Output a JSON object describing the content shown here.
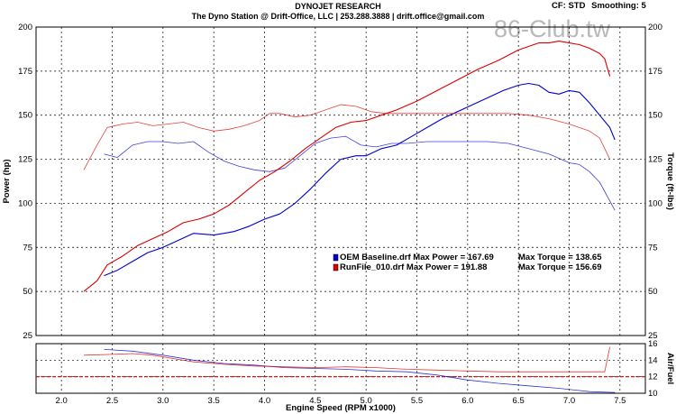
{
  "header": {
    "title": "DYNOJET RESEARCH",
    "subtitle": "The Dyno Station @ Drift-Office, LLC | 253.288.3888 | drift.office@gmail.com",
    "cf": "CF: STD",
    "smoothing": "Smoothing: 5",
    "watermark": "86-Club.tw"
  },
  "chart_data": [
    {
      "type": "line",
      "xlabel": "Engine Speed (RPM x1000)",
      "ylabel": "Power (hp)",
      "y2label": "Torque (ft-lbs)",
      "xlim": [
        1.75,
        7.75
      ],
      "ylim": [
        25,
        200
      ],
      "y2lim": [
        25,
        200
      ],
      "grid": true,
      "x_ticks": [
        "2.0",
        "2.5",
        "3.0",
        "3.5",
        "4.0",
        "4.5",
        "5.0",
        "5.5",
        "6.0",
        "6.5",
        "7.0",
        "7.5"
      ],
      "y_ticks": [
        "200",
        "175",
        "150",
        "125",
        "100",
        "75",
        "50",
        "25"
      ],
      "y2_ticks": [
        "200",
        "175",
        "150",
        "125",
        "100",
        "75",
        "50",
        "25"
      ],
      "legend": [
        {
          "file": "OEM Baseline.drf",
          "max_power_label": "Max Power = 167.69",
          "max_torque_label": "Max Torque = 138.65",
          "color": "#0000cc"
        },
        {
          "file": "RunFile_010.drf",
          "max_power_label": "Max Power = 191.88",
          "max_torque_label": "Max Torque = 156.69",
          "color": "#dd0000"
        }
      ],
      "series": [
        {
          "name": "OEM Baseline.drf",
          "quantity": "power",
          "color": "#0000cc",
          "x": [
            2.42,
            2.55,
            2.7,
            2.85,
            3.0,
            3.15,
            3.3,
            3.5,
            3.7,
            3.85,
            4.0,
            4.15,
            4.3,
            4.45,
            4.6,
            4.75,
            4.9,
            5.0,
            5.15,
            5.3,
            5.45,
            5.6,
            5.75,
            5.9,
            6.05,
            6.2,
            6.35,
            6.5,
            6.6,
            6.7,
            6.8,
            6.9,
            7.0,
            7.1,
            7.2,
            7.3,
            7.4,
            7.45
          ],
          "y": [
            59,
            62,
            67,
            72,
            75,
            79,
            83,
            82,
            84,
            87,
            91,
            94,
            100,
            108,
            117,
            125,
            127,
            127,
            131,
            133,
            138,
            143,
            148,
            152,
            156,
            160,
            164,
            167,
            168,
            167,
            163,
            162,
            164,
            163,
            157,
            150,
            143,
            136
          ]
        },
        {
          "name": "OEM Baseline.drf",
          "quantity": "torque",
          "color": "#0000cc",
          "x": [
            2.42,
            2.55,
            2.7,
            2.85,
            3.0,
            3.15,
            3.3,
            3.45,
            3.6,
            3.75,
            3.9,
            4.05,
            4.2,
            4.35,
            4.5,
            4.65,
            4.8,
            4.95,
            5.1,
            5.25,
            5.4,
            5.6,
            5.8,
            6.0,
            6.2,
            6.4,
            6.6,
            6.8,
            7.0,
            7.1,
            7.2,
            7.3,
            7.45
          ],
          "y": [
            128,
            126,
            133,
            135,
            135,
            134,
            135,
            129,
            124,
            121,
            119,
            118,
            120,
            127,
            134,
            137,
            138,
            133,
            132,
            134,
            134,
            135,
            135,
            135,
            135,
            134,
            131,
            128,
            123,
            122,
            118,
            112,
            96
          ]
        },
        {
          "name": "RunFile_010.drf",
          "quantity": "power",
          "color": "#dd0000",
          "x": [
            2.22,
            2.35,
            2.45,
            2.6,
            2.75,
            2.9,
            3.05,
            3.2,
            3.35,
            3.5,
            3.65,
            3.8,
            3.95,
            4.1,
            4.25,
            4.4,
            4.55,
            4.7,
            4.85,
            5.0,
            5.15,
            5.3,
            5.5,
            5.7,
            5.9,
            6.1,
            6.3,
            6.5,
            6.6,
            6.7,
            6.8,
            6.9,
            7.0,
            7.1,
            7.2,
            7.3,
            7.35,
            7.4
          ],
          "y": [
            50,
            56,
            65,
            70,
            76,
            80,
            84,
            89,
            91,
            94,
            99,
            106,
            113,
            118,
            124,
            131,
            137,
            143,
            146,
            147,
            150,
            153,
            158,
            164,
            170,
            176,
            181,
            187,
            189,
            191,
            191,
            192,
            191,
            190,
            188,
            185,
            182,
            172
          ]
        },
        {
          "name": "RunFile_010.drf",
          "quantity": "torque",
          "color": "#dd0000",
          "x": [
            2.22,
            2.35,
            2.45,
            2.6,
            2.75,
            2.9,
            3.05,
            3.2,
            3.35,
            3.5,
            3.65,
            3.8,
            3.95,
            4.05,
            4.15,
            4.3,
            4.45,
            4.6,
            4.75,
            4.9,
            5.05,
            5.2,
            5.4,
            5.6,
            5.8,
            6.0,
            6.2,
            6.4,
            6.6,
            6.8,
            7.0,
            7.1,
            7.2,
            7.3,
            7.4
          ],
          "y": [
            119,
            133,
            143,
            145,
            146,
            144,
            145,
            146,
            143,
            141,
            142,
            144,
            147,
            151,
            151,
            149,
            150,
            153,
            156,
            155,
            152,
            151,
            151,
            151,
            151,
            151,
            151,
            151,
            150,
            148,
            145,
            143,
            141,
            137,
            125
          ]
        }
      ]
    },
    {
      "type": "line",
      "y2label": "Air/Fuel",
      "xlim": [
        1.75,
        7.75
      ],
      "y2lim": [
        10,
        16
      ],
      "grid": true,
      "y2_ticks": [
        "16",
        "14",
        "12",
        "10"
      ],
      "reference_value": 12,
      "series": [
        {
          "name": "OEM Baseline.drf",
          "quantity": "afr",
          "color": "#0000cc",
          "x": [
            2.42,
            2.7,
            3.0,
            3.3,
            3.6,
            3.9,
            4.2,
            4.5,
            4.8,
            5.1,
            5.4,
            5.7,
            6.0,
            6.3,
            6.6,
            6.9,
            7.2,
            7.45
          ],
          "y": [
            15.3,
            15.1,
            14.6,
            14.0,
            13.6,
            13.4,
            13.1,
            13.0,
            12.9,
            12.7,
            12.6,
            12.2,
            11.6,
            11.2,
            10.9,
            10.6,
            10.2,
            10.1
          ]
        },
        {
          "name": "RunFile_010.drf",
          "quantity": "afr",
          "color": "#dd0000",
          "x": [
            2.22,
            2.5,
            2.7,
            2.9,
            3.1,
            3.3,
            3.6,
            3.9,
            4.2,
            4.5,
            4.8,
            5.1,
            5.4,
            5.7,
            6.0,
            6.3,
            6.6,
            6.9,
            7.2,
            7.35,
            7.4
          ],
          "y": [
            14.6,
            14.7,
            14.8,
            14.6,
            14.2,
            13.8,
            13.5,
            13.3,
            13.2,
            13.1,
            13.2,
            13.1,
            12.9,
            12.8,
            12.7,
            12.6,
            12.6,
            12.6,
            12.6,
            12.6,
            15.6
          ]
        }
      ]
    }
  ]
}
